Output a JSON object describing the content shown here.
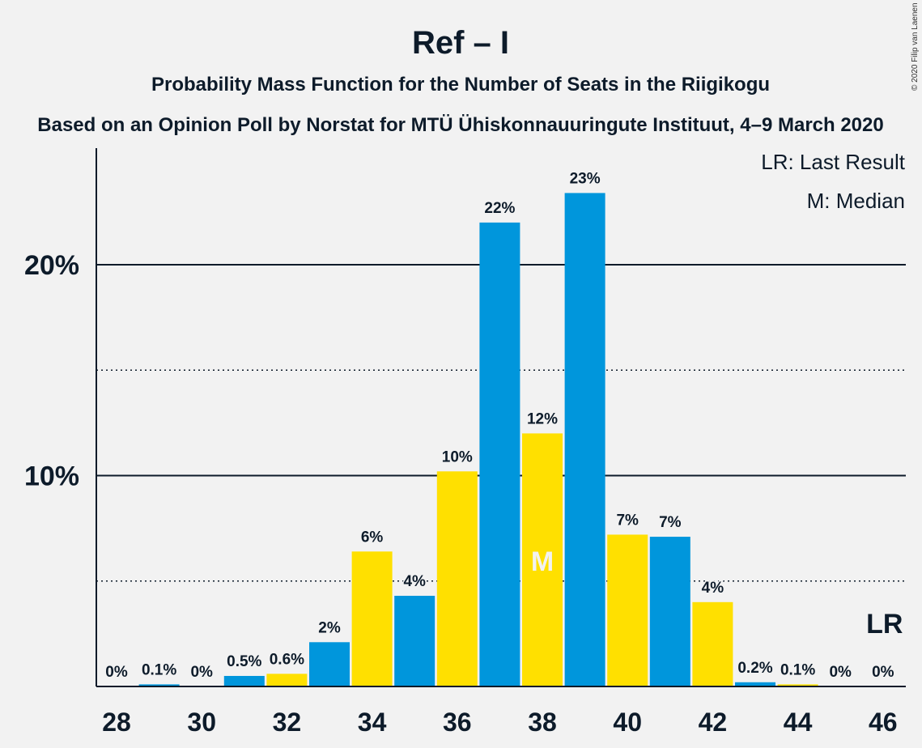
{
  "chart_data": {
    "type": "bar",
    "title": "Ref – I",
    "subtitle": "Probability Mass Function for the Number of Seats in the Riigikogu",
    "subtitle2": "Based on an Opinion Poll by Norstat for MTÜ Ühiskonnauuringute Instituut, 4–9 March 2020",
    "copyright": "© 2020 Filip van Laenen",
    "legend": [
      "LR: Last Result",
      "M: Median"
    ],
    "x": [
      28,
      29,
      30,
      31,
      32,
      33,
      34,
      35,
      36,
      37,
      38,
      39,
      40,
      41,
      42,
      43,
      44,
      45,
      46
    ],
    "values": [
      0,
      0.1,
      0,
      0.5,
      0.6,
      2.1,
      6.4,
      4.3,
      10.2,
      22,
      12,
      23.4,
      7.2,
      7.1,
      4.0,
      0.2,
      0.1,
      0,
      0
    ],
    "data_labels": [
      "0%",
      "0.1%",
      "0%",
      "0.5%",
      "0.6%",
      "2%",
      "6%",
      "4%",
      "10%",
      "22%",
      "12%",
      "23%",
      "7%",
      "7%",
      "4%",
      "0.2%",
      "0.1%",
      "0%",
      "0%"
    ],
    "x_tick_labels": [
      "28",
      "30",
      "32",
      "34",
      "36",
      "38",
      "40",
      "42",
      "44",
      "46"
    ],
    "y_tick_labels": [
      "10%",
      "20%"
    ],
    "ylim": [
      0,
      25
    ],
    "gridlines_solid": [
      10,
      20
    ],
    "gridlines_dotted": [
      5,
      15
    ],
    "colors": {
      "blue": "#0096dc",
      "yellow": "#ffe000",
      "axis": "#0d1b2a"
    },
    "median_seat": 38,
    "median_label": "M",
    "last_result_seat": 46,
    "last_result_label": "LR"
  }
}
